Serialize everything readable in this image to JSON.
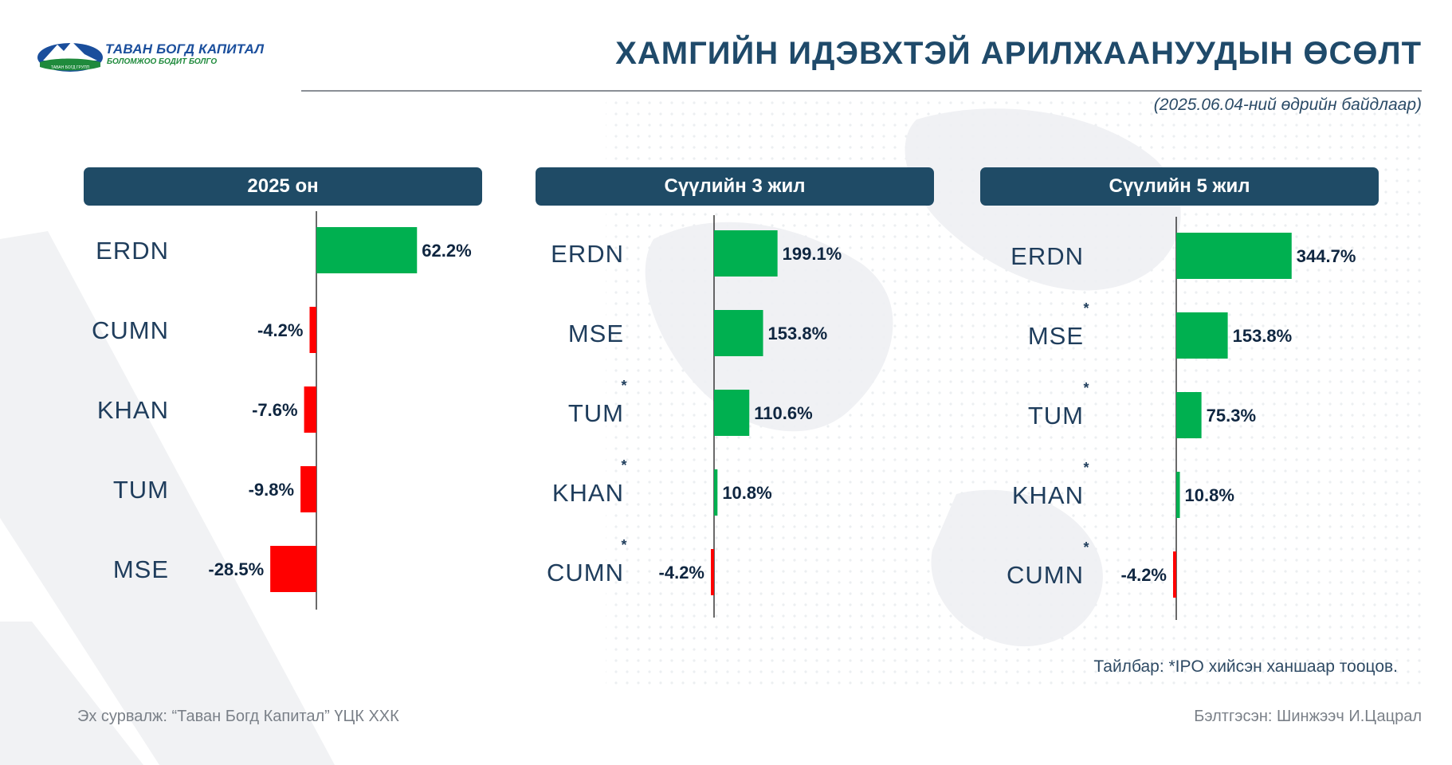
{
  "logo": {
    "name": "ТАВАН БОГД КАПИТАЛ",
    "slogan": "БОЛОМЖОО БОДИТ БОЛГО",
    "emblem_text": "ТАВАН БОГД ГРУПП"
  },
  "title": "ХАМГИЙН ИДЭВХТЭЙ АРИЛЖААНУУДЫН ӨСӨЛТ",
  "subtitle": "(2025.06.04-ний өдрийн байдлаар)",
  "panels": [
    {
      "header": "2025 он"
    },
    {
      "header": "Сүүлийн 3 жил"
    },
    {
      "header": "Сүүлийн 5 жил"
    }
  ],
  "note": "Тайлбар: *IPO хийсэн ханшаар тооцов.",
  "source": "Эх сурвалж: “Таван Богд Капитал” ҮЦК ХХК",
  "prepared_by": "Бэлтгэсэн: Шинжээч И.Цацрал",
  "colors": {
    "positive": "#00b050",
    "negative": "#ff0000",
    "label": "#1f3d5c",
    "value": "#0f2640",
    "header_bg": "#1f4b66"
  },
  "chart_data": [
    {
      "type": "bar",
      "orientation": "horizontal",
      "title": "2025 он",
      "unit": "%",
      "categories": [
        "ERDN",
        "CUMN",
        "KHAN",
        "TUM",
        "MSE"
      ],
      "values": [
        62.2,
        -4.2,
        -7.6,
        -9.8,
        -28.5
      ],
      "labels": [
        "62.2%",
        "-4.2%",
        "-7.6%",
        "-9.8%",
        "-28.5%"
      ],
      "ipo_marked": [
        false,
        false,
        false,
        false,
        false
      ]
    },
    {
      "type": "bar",
      "orientation": "horizontal",
      "title": "Сүүлийн 3 жил",
      "unit": "%",
      "categories": [
        "ERDN",
        "MSE",
        "TUM",
        "KHAN",
        "CUMN"
      ],
      "values": [
        199.1,
        153.8,
        110.6,
        10.8,
        -4.2
      ],
      "labels": [
        "199.1%",
        "153.8%",
        "110.6%",
        "10.8%",
        "-4.2%"
      ],
      "ipo_marked": [
        false,
        false,
        true,
        true,
        true
      ]
    },
    {
      "type": "bar",
      "orientation": "horizontal",
      "title": "Сүүлийн 5 жил",
      "unit": "%",
      "categories": [
        "ERDN",
        "MSE",
        "TUM",
        "KHAN",
        "CUMN"
      ],
      "values": [
        344.7,
        153.8,
        75.3,
        10.8,
        -4.2
      ],
      "labels": [
        "344.7%",
        "153.8%",
        "75.3%",
        "10.8%",
        "-4.2%"
      ],
      "ipo_marked": [
        false,
        true,
        true,
        true,
        true
      ]
    }
  ]
}
